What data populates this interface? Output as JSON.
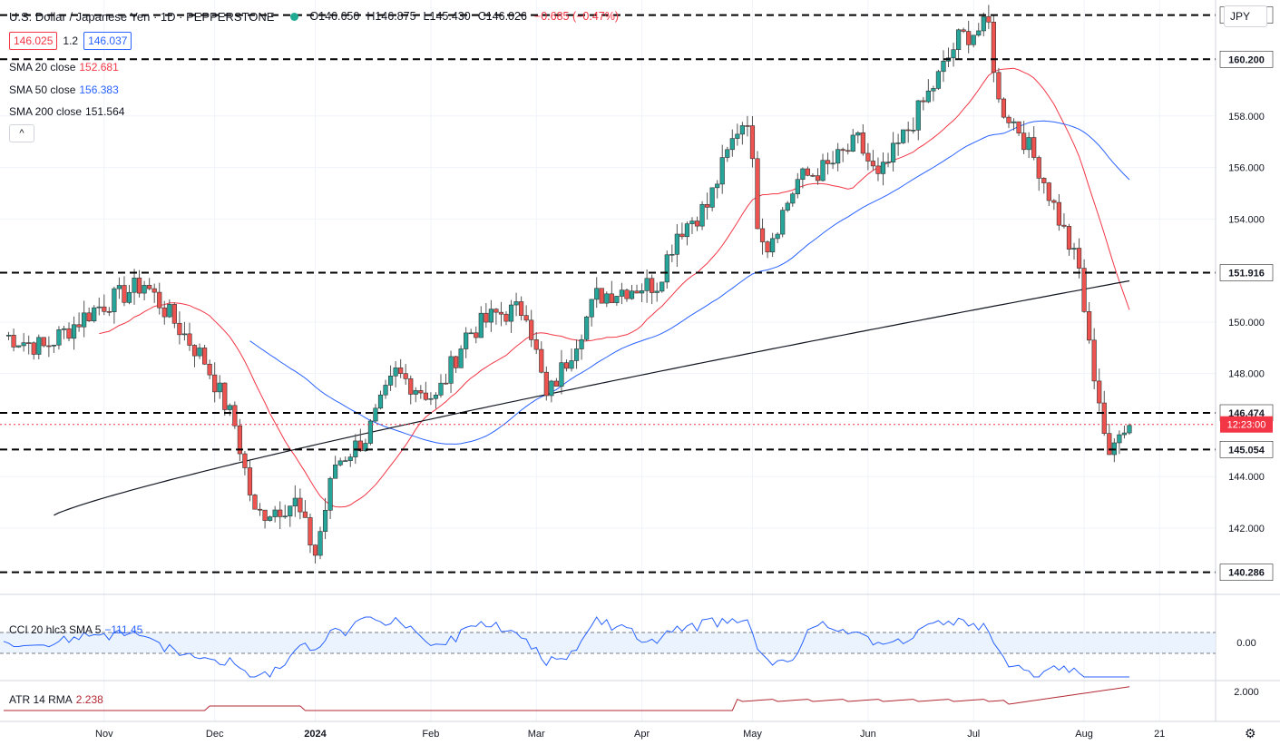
{
  "header": {
    "title": "U.S. Dollar / Japanese Yen · 1D · PEPPERSTONE",
    "open": "O146.650",
    "high": "H146.875",
    "low": "L145.430",
    "close": "C146.026",
    "change": "−0.685 (−0.47%)"
  },
  "bid": "146.025",
  "spread": "1.2",
  "ask": "146.037",
  "currency": "JPY",
  "indicators": {
    "sma20": {
      "label": "SMA 20 close",
      "value": "152.681",
      "color": "#f23645"
    },
    "sma50": {
      "label": "SMA 50 close",
      "value": "156.383",
      "color": "#2962ff"
    },
    "sma200": {
      "label": "SMA 200 close",
      "value": "151.564",
      "color": "#131722"
    },
    "cci": {
      "label": "CCI 20 hlc3 SMA 5",
      "value": "−111.45",
      "color": "#2962ff"
    },
    "atr": {
      "label": "ATR 14 RMA",
      "value": "2.238",
      "color": "#b22833"
    }
  },
  "collapse_label": "^",
  "countdown": "12:23:00",
  "chart_data": {
    "type": "candlestick",
    "ylim": [
      139.5,
      162.5
    ],
    "price_ticks": [
      "142.000",
      "144.000",
      "148.000",
      "150.000",
      "154.000",
      "156.000",
      "158.000",
      "140.286"
    ],
    "price_tick_values": [
      142,
      144,
      148,
      150,
      154,
      156,
      158,
      140.286
    ],
    "level_lines": [
      161.916,
      160.2,
      151.916,
      146.474,
      145.054,
      140.286
    ],
    "level_labels": [
      "161.916",
      "160.200",
      "151.916",
      "146.474",
      "145.054",
      "140.286"
    ],
    "last_price": 146.026,
    "last_price_label": "146.026",
    "x_labels": [
      "Nov",
      "Dec",
      "2024",
      "Feb",
      "Mar",
      "Apr",
      "May",
      "Jun",
      "Jul",
      "Aug",
      "21"
    ],
    "x_label_index": [
      20,
      42,
      62,
      85,
      106,
      127,
      149,
      172,
      193,
      215,
      230
    ],
    "sma20_end": 152.681,
    "sma50_end": 156.383,
    "sma200_end": 151.564,
    "cci_ticks": [
      "0.00"
    ],
    "atr_ticks": [
      "2.000"
    ]
  }
}
